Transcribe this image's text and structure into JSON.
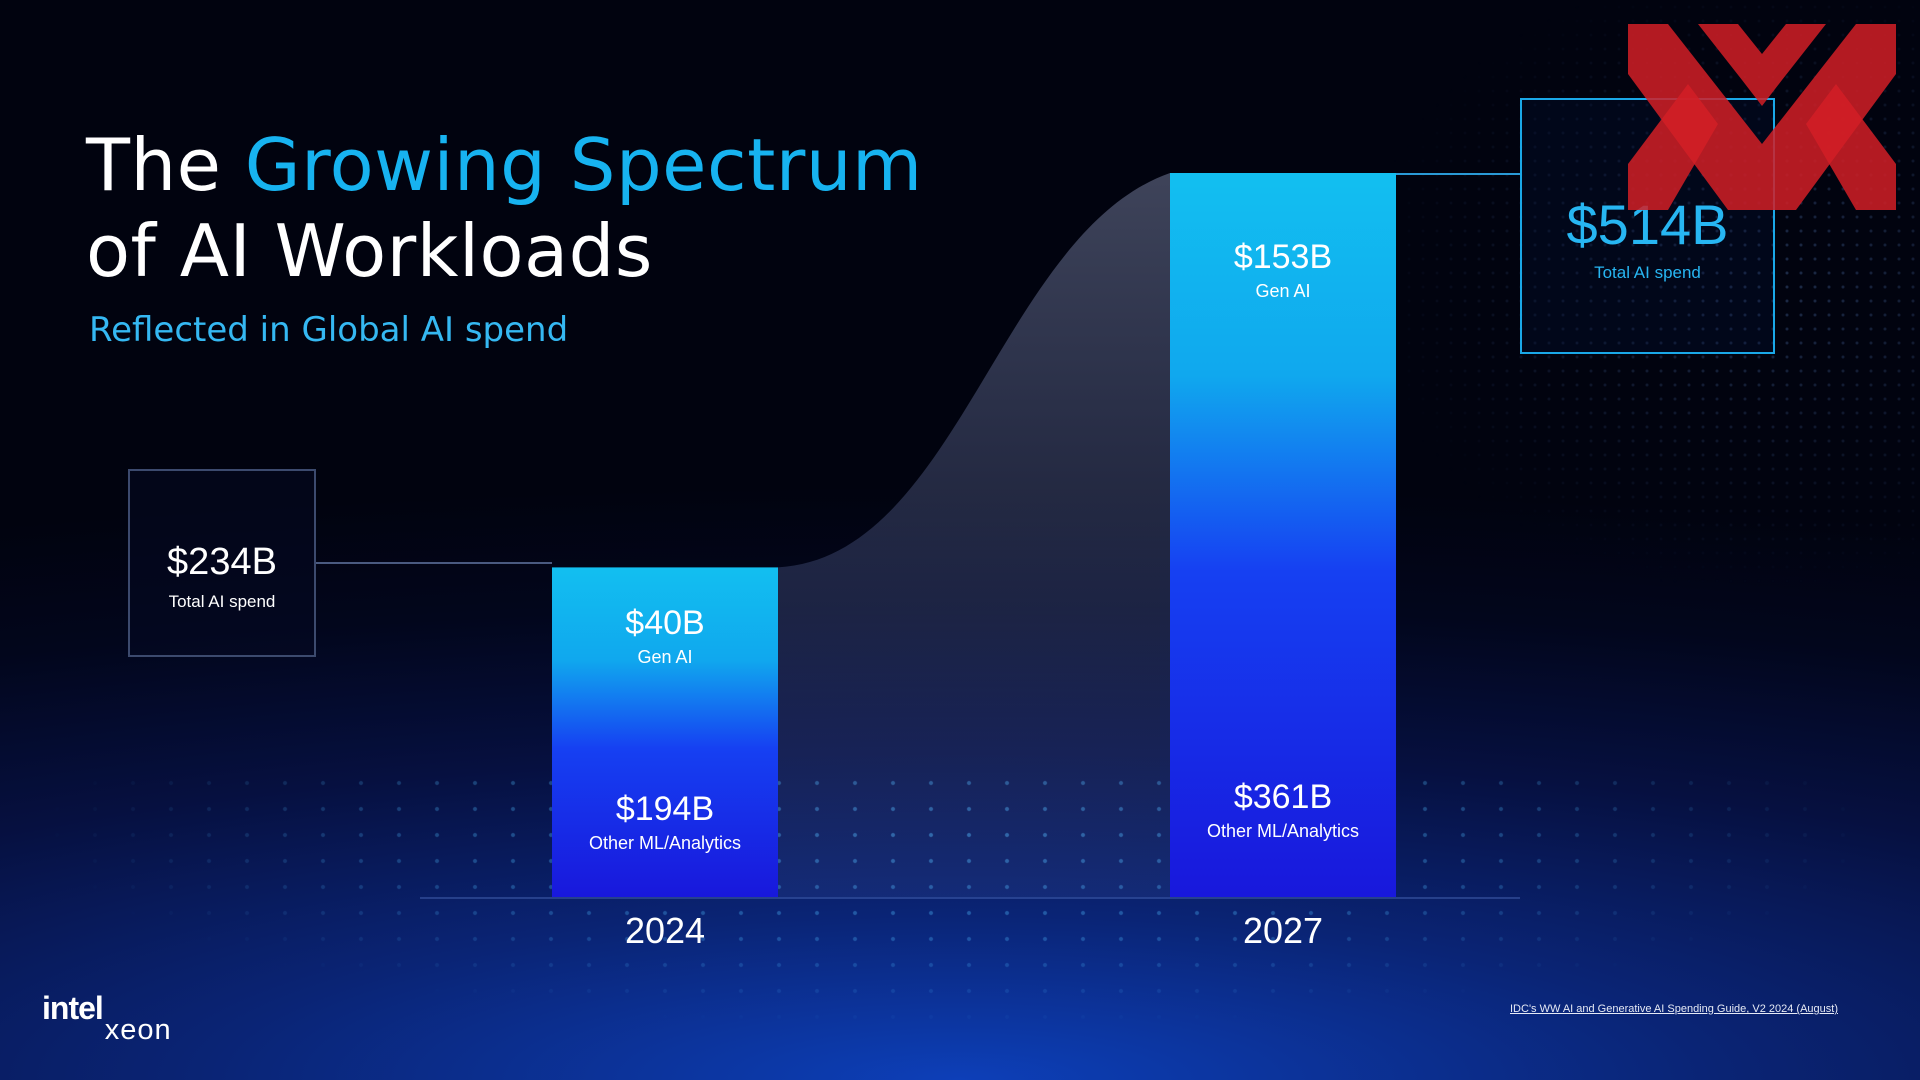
{
  "title": {
    "line1_plain": "The ",
    "line1_accent": "Growing Spectrum",
    "line2": "of AI Workloads"
  },
  "subtitle": "Reflected in Global AI spend",
  "chart_data": {
    "type": "bar",
    "stacked": true,
    "categories": [
      "2024",
      "2027"
    ],
    "series": [
      {
        "name": "Other ML/Analytics",
        "values": [
          194,
          361
        ],
        "labels": [
          "$194B",
          "$361B"
        ]
      },
      {
        "name": "Gen AI",
        "values": [
          40,
          153
        ],
        "labels": [
          "$40B",
          "$153B"
        ]
      }
    ],
    "totals": [
      {
        "value": 234,
        "label": "$234B",
        "caption": "Total AI spend"
      },
      {
        "value": 514,
        "label": "$514B",
        "caption": "Total AI spend"
      }
    ],
    "unit": "$B"
  },
  "source_note": "IDC's WW AI and Generative AI Spending Guide, V2 2024 (August)",
  "logo": {
    "brand": "intel",
    "product": "xeon"
  },
  "colors": {
    "accent": "#17b3f0",
    "bar_top": "#14bbee",
    "bar_bottom": "#1a1ff0"
  }
}
